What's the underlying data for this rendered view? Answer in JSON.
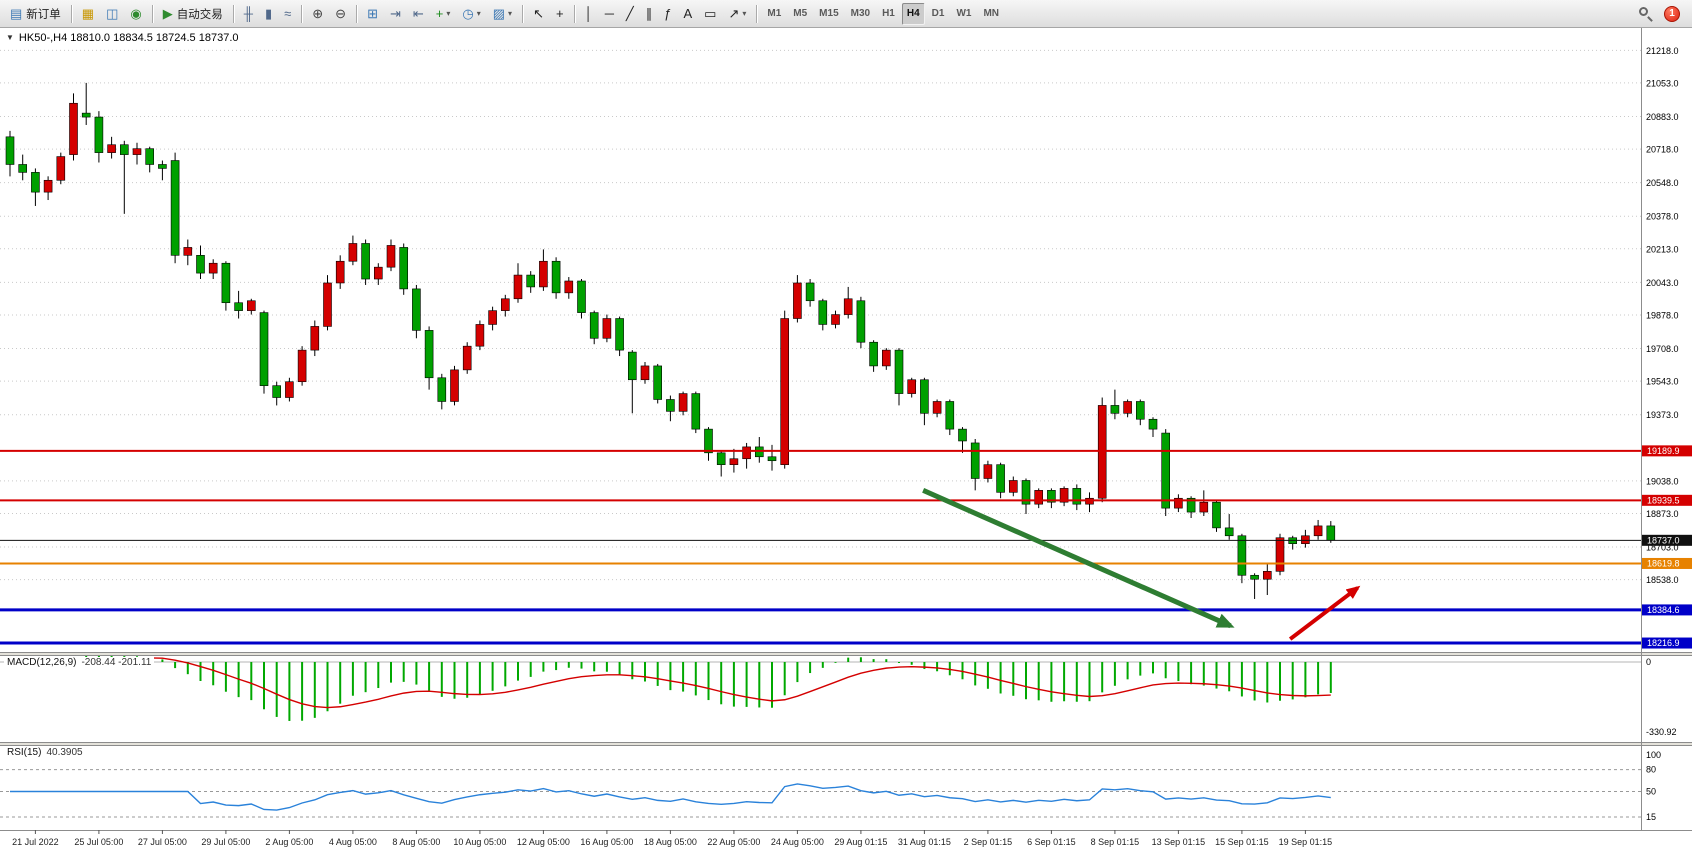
{
  "toolbar": {
    "notification_count": "1",
    "items": [
      {
        "type": "button",
        "name": "new-order-button",
        "icon": "new-order-icon",
        "glyph": "▤",
        "glyph_color": "#3c78b4",
        "label": "新订单"
      },
      {
        "type": "separator"
      },
      {
        "type": "button",
        "name": "market-watch-button",
        "icon": "market-watch-icon",
        "glyph": "▦",
        "glyph_color": "#c89600"
      },
      {
        "type": "button",
        "name": "data-window-button",
        "icon": "data-window-icon",
        "glyph": "◫",
        "glyph_color": "#3c78b4"
      },
      {
        "type": "button",
        "name": "navigator-button",
        "icon": "navigator-icon",
        "glyph": "◉",
        "glyph_color": "#2e8b2e"
      },
      {
        "type": "separator"
      },
      {
        "type": "button",
        "name": "auto-trading-button",
        "icon": "auto-trading-icon",
        "glyph": "▶",
        "glyph_color": "#2e8b2e",
        "label": "自动交易"
      },
      {
        "type": "separator"
      },
      {
        "type": "button",
        "name": "bar-chart-button",
        "icon": "bar-chart-icon",
        "glyph": "╫",
        "glyph_color": "#50688a"
      },
      {
        "type": "button",
        "name": "candlestick-chart-button",
        "icon": "candlestick-icon",
        "glyph": "▮",
        "glyph_color": "#50688a"
      },
      {
        "type": "button",
        "name": "line-chart-button",
        "icon": "line-chart-icon",
        "glyph": "≈",
        "glyph_color": "#50688a"
      },
      {
        "type": "separator"
      },
      {
        "type": "button",
        "name": "zoom-in-button",
        "icon": "zoom-in-icon",
        "glyph": "⊕",
        "glyph_color": "#444444"
      },
      {
        "type": "button",
        "name": "zoom-out-button",
        "icon": "zoom-out-icon",
        "glyph": "⊖",
        "glyph_color": "#444444"
      },
      {
        "type": "separator"
      },
      {
        "type": "button",
        "name": "tile-windows-button",
        "icon": "tile-windows-icon",
        "glyph": "⊞",
        "glyph_color": "#3c78b4"
      },
      {
        "type": "button",
        "name": "auto-scroll-button",
        "icon": "auto-scroll-icon",
        "glyph": "⇥",
        "glyph_color": "#50688a"
      },
      {
        "type": "button",
        "name": "chart-shift-button",
        "icon": "chart-shift-icon",
        "glyph": "⇤",
        "glyph_color": "#50688a"
      },
      {
        "type": "button",
        "name": "indicators-button",
        "icon": "indicators-icon",
        "glyph": "+",
        "glyph_color": "#1e8c1e",
        "caret": true
      },
      {
        "type": "button",
        "name": "periods-button",
        "icon": "clock-icon",
        "glyph": "◷",
        "glyph_color": "#3c78b4",
        "caret": true
      },
      {
        "type": "button",
        "name": "templates-button",
        "icon": "template-icon",
        "glyph": "▨",
        "glyph_color": "#3c78b4",
        "caret": true
      },
      {
        "type": "separator"
      },
      {
        "type": "button",
        "name": "cursor-button",
        "icon": "cursor-icon",
        "glyph": "↖",
        "glyph_color": "#222222"
      },
      {
        "type": "button",
        "name": "crosshair-button",
        "icon": "crosshair-icon",
        "glyph": "+",
        "glyph_color": "#222222"
      },
      {
        "type": "separator"
      },
      {
        "type": "button",
        "name": "vertical-line-button",
        "icon": "vertical-line-icon",
        "glyph": "│",
        "glyph_color": "#222222"
      },
      {
        "type": "button",
        "name": "horizontal-line-button",
        "icon": "horizontal-line-icon",
        "glyph": "─",
        "glyph_color": "#222222"
      },
      {
        "type": "button",
        "name": "trendline-button",
        "icon": "trendline-icon",
        "glyph": "╱",
        "glyph_color": "#222222"
      },
      {
        "type": "button",
        "name": "channel-button",
        "icon": "channel-icon",
        "glyph": "∥",
        "glyph_color": "#222222"
      },
      {
        "type": "button",
        "name": "fibonacci-button",
        "icon": "fibonacci-icon",
        "glyph": "ƒ",
        "glyph_color": "#222222"
      },
      {
        "type": "button",
        "name": "text-button",
        "icon": "text-icon",
        "glyph": "A",
        "glyph_color": "#222222"
      },
      {
        "type": "button",
        "name": "label-button",
        "icon": "label-icon",
        "glyph": "▭",
        "glyph_color": "#222222"
      },
      {
        "type": "button",
        "name": "arrows-button",
        "icon": "arrow-tools-icon",
        "glyph": "↗",
        "glyph_color": "#222222",
        "caret": true
      },
      {
        "type": "separator"
      },
      {
        "type": "tf",
        "name": "timeframe-m1-button",
        "label": "M1"
      },
      {
        "type": "tf",
        "name": "timeframe-m5-button",
        "label": "M5"
      },
      {
        "type": "tf",
        "name": "timeframe-m15-button",
        "label": "M15"
      },
      {
        "type": "tf",
        "name": "timeframe-m30-button",
        "label": "M30"
      },
      {
        "type": "tf",
        "name": "timeframe-h1-button",
        "label": "H1"
      },
      {
        "type": "tf",
        "name": "timeframe-h4-button",
        "label": "H4",
        "active": true
      },
      {
        "type": "tf",
        "name": "timeframe-d1-button",
        "label": "D1"
      },
      {
        "type": "tf",
        "name": "timeframe-w1-button",
        "label": "W1"
      },
      {
        "type": "tf",
        "name": "timeframe-mn-button",
        "label": "MN"
      }
    ]
  },
  "chart_data": {
    "type": "candlestick",
    "symbol": "HK50-",
    "timeframe": "H4",
    "title_text": "HK50-,H4 18810.0 18834.5 18724.5 18737.0",
    "current_ohlc": {
      "open": 18810.0,
      "high": 18834.5,
      "low": 18724.5,
      "close": 18737.0
    },
    "colors": {
      "up": "#d40000",
      "down": "#00a000",
      "wick": "#000000",
      "grid": "#c9c9c9",
      "background": "#ffffff"
    },
    "y_axis_ticks": [
      21218.0,
      21053.0,
      20883.0,
      20718.0,
      20548.0,
      20378.0,
      20213.0,
      20043.0,
      19878.0,
      19708.0,
      19543.0,
      19373.0,
      19038.0,
      18873.0,
      18703.0,
      18538.0
    ],
    "x_labels": [
      "21 Jul 2022",
      "25 Jul 05:00",
      "27 Jul 05:00",
      "29 Jul 05:00",
      "2 Aug 05:00",
      "4 Aug 05:00",
      "8 Aug 05:00",
      "10 Aug 05:00",
      "12 Aug 05:00",
      "16 Aug 05:00",
      "18 Aug 05:00",
      "22 Aug 05:00",
      "24 Aug 05:00",
      "29 Aug 01:15",
      "31 Aug 01:15",
      "2 Sep 01:15",
      "6 Sep 01:15",
      "8 Sep 01:15",
      "13 Sep 01:15",
      "15 Sep 01:15",
      "19 Sep 01:15"
    ],
    "x_label_start_index": 2,
    "x_label_step": 5,
    "candles": [
      [
        20780,
        20810,
        20580,
        20640
      ],
      [
        20640,
        20690,
        20560,
        20600
      ],
      [
        20600,
        20620,
        20430,
        20500
      ],
      [
        20500,
        20580,
        20460,
        20560
      ],
      [
        20560,
        20700,
        20540,
        20680
      ],
      [
        20690,
        21000,
        20660,
        20950
      ],
      [
        20900,
        21053,
        20840,
        20880
      ],
      [
        20880,
        20910,
        20650,
        20700
      ],
      [
        20700,
        20780,
        20670,
        20740
      ],
      [
        20740,
        20760,
        20390,
        20690
      ],
      [
        20690,
        20750,
        20640,
        20720
      ],
      [
        20720,
        20730,
        20600,
        20640
      ],
      [
        20640,
        20660,
        20560,
        20620
      ],
      [
        20660,
        20700,
        20140,
        20180
      ],
      [
        20180,
        20260,
        20130,
        20220
      ],
      [
        20180,
        20230,
        20060,
        20090
      ],
      [
        20090,
        20160,
        20060,
        20140
      ],
      [
        20140,
        20150,
        19900,
        19940
      ],
      [
        19940,
        20000,
        19860,
        19900
      ],
      [
        19900,
        19960,
        19880,
        19950
      ],
      [
        19890,
        19900,
        19480,
        19520
      ],
      [
        19520,
        19540,
        19420,
        19460
      ],
      [
        19460,
        19560,
        19440,
        19540
      ],
      [
        19540,
        19720,
        19520,
        19700
      ],
      [
        19700,
        19850,
        19670,
        19820
      ],
      [
        19820,
        20080,
        19800,
        20040
      ],
      [
        20040,
        20180,
        20010,
        20150
      ],
      [
        20150,
        20280,
        20130,
        20240
      ],
      [
        20240,
        20260,
        20030,
        20060
      ],
      [
        20060,
        20140,
        20030,
        20120
      ],
      [
        20120,
        20260,
        20100,
        20230
      ],
      [
        20220,
        20240,
        19980,
        20010
      ],
      [
        20010,
        20030,
        19760,
        19800
      ],
      [
        19800,
        19820,
        19500,
        19560
      ],
      [
        19560,
        19580,
        19400,
        19440
      ],
      [
        19440,
        19620,
        19420,
        19600
      ],
      [
        19600,
        19740,
        19580,
        19720
      ],
      [
        19720,
        19850,
        19700,
        19830
      ],
      [
        19830,
        19920,
        19800,
        19900
      ],
      [
        19900,
        19980,
        19870,
        19960
      ],
      [
        19960,
        20140,
        19940,
        20080
      ],
      [
        20080,
        20100,
        19990,
        20020
      ],
      [
        20020,
        20210,
        20000,
        20150
      ],
      [
        20150,
        20170,
        19960,
        19990
      ],
      [
        19990,
        20070,
        19960,
        20050
      ],
      [
        20050,
        20060,
        19860,
        19890
      ],
      [
        19890,
        19900,
        19730,
        19760
      ],
      [
        19760,
        19880,
        19740,
        19860
      ],
      [
        19860,
        19870,
        19670,
        19700
      ],
      [
        19690,
        19700,
        19380,
        19550
      ],
      [
        19550,
        19640,
        19530,
        19620
      ],
      [
        19620,
        19630,
        19430,
        19450
      ],
      [
        19450,
        19470,
        19340,
        19390
      ],
      [
        19390,
        19490,
        19370,
        19480
      ],
      [
        19480,
        19490,
        19280,
        19300
      ],
      [
        19300,
        19310,
        19140,
        19180
      ],
      [
        19180,
        19190,
        19060,
        19120
      ],
      [
        19120,
        19200,
        19080,
        19150
      ],
      [
        19150,
        19230,
        19100,
        19210
      ],
      [
        19210,
        19260,
        19130,
        19160
      ],
      [
        19160,
        19220,
        19090,
        19140
      ],
      [
        19120,
        19900,
        19100,
        19860
      ],
      [
        19860,
        20080,
        19840,
        20040
      ],
      [
        20040,
        20060,
        19920,
        19950
      ],
      [
        19950,
        19960,
        19800,
        19830
      ],
      [
        19830,
        19900,
        19810,
        19880
      ],
      [
        19880,
        20020,
        19860,
        19960
      ],
      [
        19950,
        19970,
        19710,
        19740
      ],
      [
        19740,
        19750,
        19590,
        19620
      ],
      [
        19620,
        19710,
        19600,
        19700
      ],
      [
        19700,
        19710,
        19420,
        19480
      ],
      [
        19480,
        19560,
        19460,
        19550
      ],
      [
        19550,
        19560,
        19320,
        19380
      ],
      [
        19380,
        19450,
        19360,
        19440
      ],
      [
        19440,
        19450,
        19270,
        19300
      ],
      [
        19300,
        19310,
        19180,
        19240
      ],
      [
        19230,
        19250,
        18990,
        19050
      ],
      [
        19050,
        19140,
        19030,
        19120
      ],
      [
        19120,
        19130,
        18950,
        18980
      ],
      [
        18980,
        19060,
        18960,
        19040
      ],
      [
        19040,
        19050,
        18870,
        18920
      ],
      [
        18920,
        19000,
        18900,
        18990
      ],
      [
        18990,
        19000,
        18900,
        18930
      ],
      [
        18930,
        19010,
        18910,
        19000
      ],
      [
        19000,
        19020,
        18890,
        18920
      ],
      [
        18920,
        18980,
        18880,
        18950
      ],
      [
        18950,
        19460,
        18930,
        19420
      ],
      [
        19420,
        19500,
        19350,
        19380
      ],
      [
        19380,
        19450,
        19360,
        19440
      ],
      [
        19440,
        19450,
        19320,
        19350
      ],
      [
        19350,
        19360,
        19260,
        19300
      ],
      [
        19280,
        19300,
        18860,
        18900
      ],
      [
        18900,
        18970,
        18880,
        18950
      ],
      [
        18950,
        18960,
        18850,
        18880
      ],
      [
        18880,
        18990,
        18860,
        18930
      ],
      [
        18930,
        18940,
        18780,
        18800
      ],
      [
        18800,
        18870,
        18740,
        18760
      ],
      [
        18760,
        18770,
        18520,
        18560
      ],
      [
        18560,
        18570,
        18440,
        18540
      ],
      [
        18540,
        18620,
        18460,
        18580
      ],
      [
        18580,
        18770,
        18560,
        18750
      ],
      [
        18750,
        18760,
        18690,
        18720
      ],
      [
        18720,
        18790,
        18700,
        18760
      ],
      [
        18760,
        18840,
        18740,
        18810
      ],
      [
        18810,
        18834.5,
        18724.5,
        18737
      ]
    ],
    "hlines": [
      {
        "price": 19189.9,
        "label": "19189.9",
        "color": "#d40000",
        "width": 2
      },
      {
        "price": 18939.5,
        "label": "18939.5",
        "color": "#d40000",
        "width": 2
      },
      {
        "price": 18737.0,
        "label": "18737.0",
        "color": "#101010",
        "width": 1
      },
      {
        "price": 18619.8,
        "label": "18619.8",
        "color": "#e78200",
        "width": 2
      },
      {
        "price": 18384.6,
        "label": "18384.6",
        "color": "#0000c8",
        "width": 3
      },
      {
        "price": 18216.9,
        "label": "18216.9",
        "color": "#0000c8",
        "width": 3
      }
    ],
    "macd": {
      "label": "MACD(12,26,9)",
      "values_text": "-208.44 -201.11",
      "fast": 12,
      "slow": 26,
      "signal": 9,
      "axis_top_label": "0",
      "axis_bottom_label": "-330.92",
      "axis_min": -330.92,
      "histogram_color": "#00a800",
      "signal_color": "#d40000"
    },
    "rsi": {
      "label": "RSI(15)",
      "value_text": "40.3905",
      "period": 15,
      "levels": [
        80,
        50,
        15
      ],
      "axis_labels": [
        "100",
        "80",
        "50",
        "15"
      ],
      "line_color": "#2a82da"
    },
    "annotations": [
      {
        "name": "green-trend-arrow",
        "type": "arrow",
        "from_bar": 71.9,
        "from_price": 18990,
        "to_bar": 96.1,
        "to_price": 18304,
        "color": "#2e7d32",
        "width": 5
      },
      {
        "name": "red-trend-arrow",
        "type": "arrow",
        "from_bar": 100.8,
        "from_price": 18237,
        "to_bar": 106.1,
        "to_price": 18496,
        "color": "#d40000",
        "width": 4
      }
    ]
  }
}
